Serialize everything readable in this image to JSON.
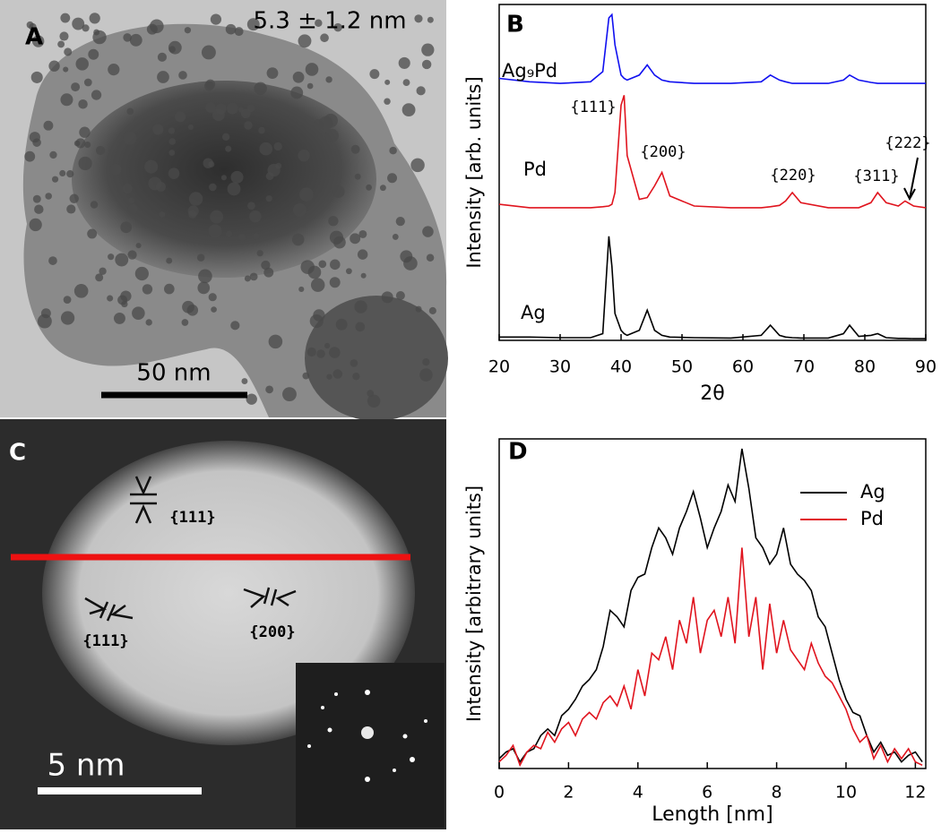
{
  "panels": {
    "a": {
      "label": "A",
      "size_note": "5.3 ± 1.2 nm",
      "scale_bar": "50 nm"
    },
    "c": {
      "label": "C",
      "scale_bar": "5 nm",
      "annotations": [
        "{111}",
        "{111}",
        "{200}"
      ]
    }
  },
  "chart_data": [
    {
      "type": "line",
      "label": "B",
      "xlabel": "2θ",
      "ylabel": "Intensity [arb. units]",
      "xlim": [
        20,
        90
      ],
      "xticks": [
        20,
        30,
        40,
        50,
        60,
        70,
        80,
        90
      ],
      "ylim": [
        0,
        100
      ],
      "legend": "inline",
      "annotations": [
        "{111}",
        "{200}",
        "{220}",
        "{311}",
        "{222}"
      ],
      "x": [
        20,
        25,
        30,
        35,
        37,
        38,
        38.5,
        39,
        40,
        40.5,
        41,
        43,
        44.3,
        45.5,
        46.7,
        48,
        52,
        58,
        63,
        64.5,
        66,
        67,
        68.1,
        69.5,
        74,
        76.5,
        77.5,
        79,
        81,
        82.1,
        83.5,
        85.5,
        86.6,
        88,
        90
      ],
      "series": [
        {
          "name": "Ag₉Pd",
          "color": "#1010f0",
          "values": [
            78,
            77,
            76.5,
            77,
            80,
            96,
            97,
            88,
            79,
            78,
            77.5,
            79,
            82,
            79,
            77.5,
            77,
            76.5,
            76.5,
            77,
            79,
            77.5,
            77,
            76.5,
            76.5,
            76.5,
            77.5,
            79,
            77.5,
            76.8,
            76.5,
            76.5,
            76.5,
            76.5,
            76.5,
            76.5
          ]
        },
        {
          "name": "Pd",
          "color": "#e0141e",
          "values": [
            40.5,
            39.5,
            39.5,
            39.5,
            39.8,
            40,
            40.5,
            44,
            70,
            73,
            55,
            42,
            42.5,
            46,
            50,
            43,
            40,
            39.5,
            39.5,
            39.8,
            40.2,
            41.5,
            44,
            41,
            39.5,
            39.5,
            39.5,
            39.5,
            41,
            44,
            41,
            40,
            41.5,
            40,
            39.5
          ]
        },
        {
          "name": "Ag",
          "color": "#000000",
          "values": [
            1,
            1,
            0.8,
            0.8,
            2,
            31,
            22,
            8,
            3,
            2,
            1.5,
            3,
            9,
            3,
            1.5,
            1,
            0.8,
            0.7,
            1.5,
            4.5,
            1.5,
            1,
            0.8,
            0.7,
            0.7,
            2,
            4.5,
            1.2,
            1.5,
            2,
            0.8,
            0.6,
            0.6,
            0.5,
            0.5
          ]
        }
      ]
    },
    {
      "type": "line",
      "label": "D",
      "xlabel": "Length [nm]",
      "ylabel": "Intensity [arbitrary units]",
      "xlim": [
        0,
        12.3
      ],
      "xticks": [
        0,
        2,
        4,
        6,
        8,
        10,
        12
      ],
      "ylim": [
        0,
        100
      ],
      "legend": "upper right",
      "x": [
        0,
        0.2,
        0.4,
        0.6,
        0.8,
        1,
        1.2,
        1.4,
        1.6,
        1.8,
        2,
        2.2,
        2.4,
        2.6,
        2.8,
        3,
        3.2,
        3.4,
        3.6,
        3.8,
        4,
        4.2,
        4.4,
        4.6,
        4.8,
        5,
        5.2,
        5.4,
        5.6,
        5.8,
        6,
        6.2,
        6.4,
        6.6,
        6.8,
        7,
        7.2,
        7.4,
        7.6,
        7.8,
        8,
        8.2,
        8.4,
        8.6,
        8.8,
        9,
        9.2,
        9.4,
        9.6,
        9.8,
        10,
        10.2,
        10.4,
        10.6,
        10.8,
        11,
        11.2,
        11.4,
        11.6,
        11.8,
        12,
        12.2
      ],
      "series": [
        {
          "name": "Ag",
          "color": "#000000",
          "values": [
            3,
            5,
            6,
            2,
            5,
            6,
            10,
            12,
            10,
            16,
            18,
            21,
            25,
            27,
            30,
            37,
            48,
            46,
            43,
            54,
            58,
            59,
            67,
            73,
            70,
            65,
            73,
            78,
            84,
            76,
            67,
            73,
            78,
            86,
            81,
            97,
            85,
            70,
            67,
            62,
            65,
            73,
            62,
            59,
            57,
            54,
            46,
            43,
            35,
            27,
            21,
            17,
            16,
            10,
            5,
            8,
            4,
            5,
            2,
            4,
            5,
            2
          ]
        },
        {
          "name": "Pd",
          "color": "#e0141e",
          "values": [
            2,
            4,
            7,
            1,
            5,
            7,
            6,
            11,
            8,
            12,
            14,
            10,
            15,
            17,
            15,
            20,
            22,
            19,
            25,
            18,
            30,
            22,
            35,
            33,
            40,
            30,
            45,
            38,
            52,
            35,
            45,
            48,
            40,
            52,
            38,
            67,
            40,
            52,
            30,
            50,
            35,
            45,
            36,
            33,
            30,
            38,
            32,
            28,
            26,
            22,
            18,
            12,
            8,
            10,
            3,
            7,
            2,
            6,
            3,
            6,
            2,
            1
          ]
        }
      ]
    }
  ]
}
